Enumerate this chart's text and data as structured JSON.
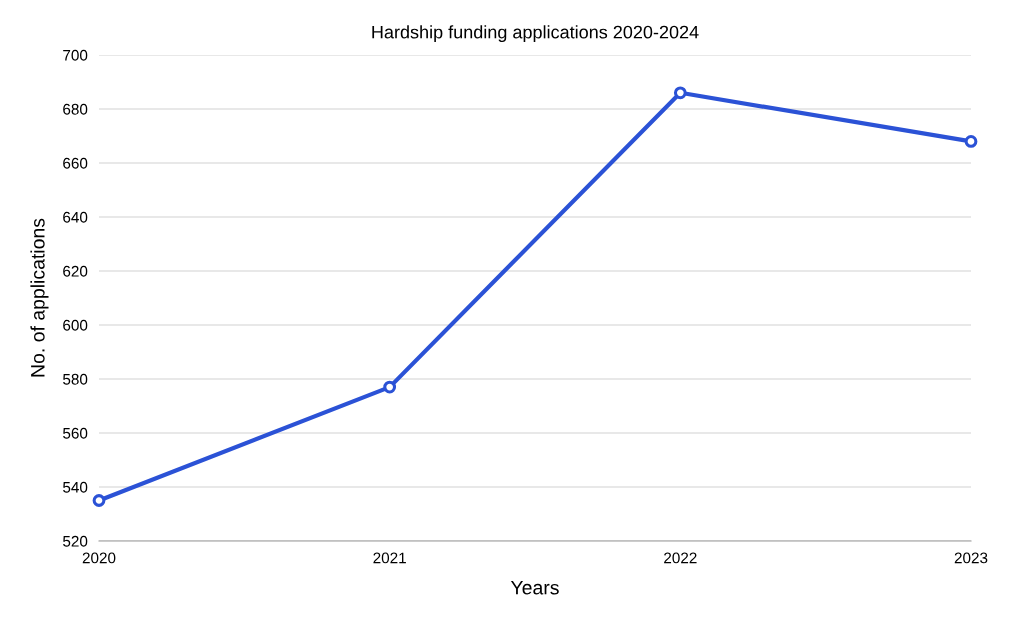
{
  "chart_data": {
    "type": "line",
    "title": "Hardship funding applications 2020-2024",
    "xlabel": "Years",
    "ylabel": "No. of applications",
    "categories": [
      "2020",
      "2021",
      "2022",
      "2023"
    ],
    "series": [
      {
        "color": "#2b52d6",
        "values": [
          535,
          577,
          686,
          668
        ]
      }
    ],
    "ylim": [
      520,
      700
    ],
    "yticks": [
      520,
      540,
      560,
      580,
      600,
      620,
      640,
      660,
      680,
      700
    ],
    "grid": "y",
    "marker": "circle",
    "line_style": "solid",
    "legend": false
  }
}
